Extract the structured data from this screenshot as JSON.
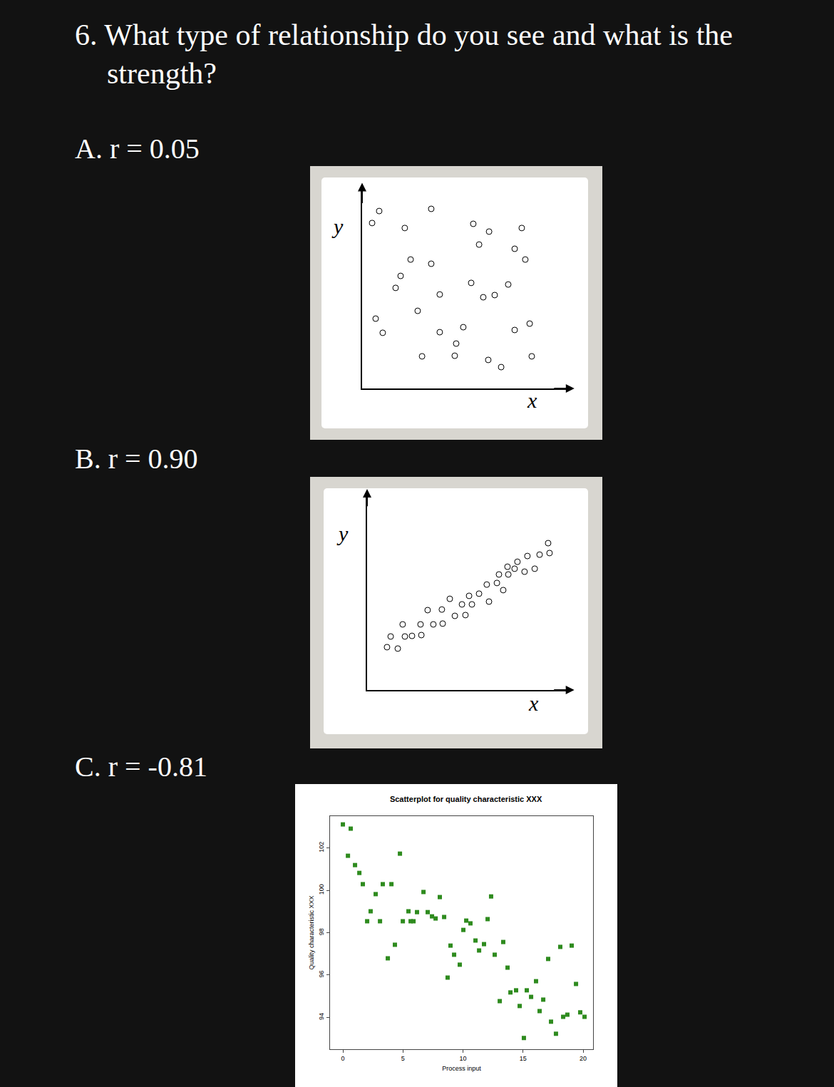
{
  "heading": "6. What type of relationship do you see and what is the strength?",
  "chart_data": [
    {
      "type": "scatter",
      "label": "A. r = 0.05",
      "x_label": "x",
      "y_label": "y",
      "marker": "circle-open",
      "color": "#000000",
      "tick_labels": false,
      "xlim": [
        0,
        10
      ],
      "ylim": [
        0,
        10
      ],
      "x": [
        0.82,
        0.48,
        2.05,
        3.32,
        5.34,
        6.1,
        5.62,
        7.67,
        7.33,
        7.84,
        2.33,
        3.32,
        1.85,
        1.61,
        3.73,
        2.67,
        5.24,
        5.82,
        6.37,
        7.02,
        0.65,
        0.99,
        3.73,
        4.86,
        4.52,
        4.45,
        2.88,
        6.06,
        6.68,
        7.33,
        8.05,
        8.15
      ],
      "y": [
        8.89,
        8.29,
        8.04,
        9.0,
        8.25,
        7.86,
        7.21,
        8.04,
        7.0,
        6.46,
        6.46,
        6.25,
        5.64,
        5.04,
        4.71,
        3.89,
        5.29,
        4.57,
        4.68,
        5.21,
        3.5,
        2.79,
        2.82,
        3.07,
        2.25,
        1.64,
        1.61,
        1.43,
        1.07,
        2.93,
        3.25,
        1.61
      ]
    },
    {
      "type": "scatter",
      "label": "B. r = 0.90",
      "x_label": "x",
      "y_label": "y",
      "marker": "circle-open",
      "color": "#000000",
      "tick_labels": false,
      "xlim": [
        0,
        10
      ],
      "ylim": [
        0,
        10
      ],
      "x": [
        0.98,
        1.51,
        1.16,
        1.86,
        2.21,
        2.67,
        1.75,
        2.63,
        3.26,
        3.72,
        2.98,
        3.68,
        4.32,
        4.84,
        4.07,
        4.67,
        5.16,
        5.02,
        5.51,
        6.0,
        5.89,
        6.39,
        6.49,
        6.95,
        6.7,
        6.91,
        7.26,
        7.4,
        7.75,
        7.89,
        8.25,
        8.49,
        8.91,
        8.98
      ],
      "y": [
        2.16,
        2.09,
        2.7,
        2.7,
        2.73,
        2.77,
        3.31,
        3.31,
        3.31,
        3.35,
        4.03,
        4.06,
        3.74,
        3.78,
        4.6,
        4.32,
        4.32,
        4.75,
        4.86,
        4.46,
        5.32,
        5.4,
        5.83,
        5.83,
        5.04,
        6.22,
        6.12,
        6.47,
        5.97,
        6.76,
        6.12,
        6.83,
        7.41,
        6.91
      ]
    },
    {
      "type": "scatter",
      "label": "C. r = -0.81",
      "title": "Scatterplot for quality characteristic XXX",
      "x_label": "Process input",
      "y_label": "Quality characteristic XXX",
      "marker": "square",
      "color": "#2e8b1e",
      "tick_labels": true,
      "xlim": [
        -1.07,
        20.83
      ],
      "ylim": [
        92.5,
        103.5
      ],
      "xticks": [
        0,
        5,
        10,
        15,
        20
      ],
      "yticks": [
        94,
        96,
        98,
        100,
        102
      ],
      "x": [
        0.0,
        0.65,
        0.42,
        1.01,
        1.37,
        1.66,
        2.73,
        2.31,
        2.02,
        3.09,
        3.32,
        4.04,
        4.75,
        4.33,
        3.74,
        6.71,
        8.07,
        5.46,
        6.17,
        4.99,
        5.64,
        5.88,
        7.06,
        7.42,
        7.72,
        8.43,
        10.27,
        10.62,
        10.03,
        12.34,
        12.05,
        8.96,
        9.26,
        9.73,
        8.72,
        11.04,
        11.34,
        11.75,
        12.64,
        13.35,
        13.71,
        13.06,
        13.95,
        14.42,
        14.72,
        15.31,
        15.67,
        16.08,
        16.68,
        16.38,
        15.07,
        17.09,
        18.1,
        19.05,
        19.41,
        17.33,
        18.34,
        18.69,
        17.74,
        19.76,
        20.12
      ],
      "y": [
        103.11,
        102.91,
        101.63,
        101.19,
        100.82,
        100.29,
        99.82,
        99.01,
        98.54,
        98.54,
        100.29,
        100.29,
        101.73,
        97.43,
        96.79,
        99.92,
        99.68,
        99.01,
        98.97,
        98.54,
        98.54,
        98.54,
        98.97,
        98.77,
        98.67,
        98.74,
        98.57,
        98.44,
        98.13,
        99.71,
        98.64,
        97.39,
        96.96,
        96.49,
        95.88,
        97.63,
        97.16,
        97.46,
        96.96,
        97.56,
        96.35,
        94.77,
        95.18,
        95.28,
        94.54,
        95.28,
        94.97,
        95.71,
        94.84,
        94.3,
        93.03,
        96.76,
        97.33,
        97.39,
        95.58,
        93.8,
        94.03,
        94.13,
        93.23,
        94.24,
        94.03
      ]
    }
  ]
}
